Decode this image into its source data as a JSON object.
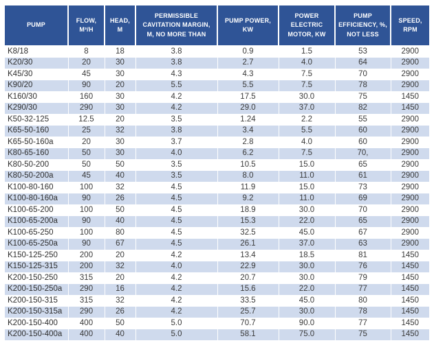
{
  "colors": {
    "header_bg": "#2F5496",
    "header_text": "#FFFFFF",
    "row_alt_bg": "#CFDAED",
    "body_text": "#3A3A3A"
  },
  "table": {
    "columns": [
      "PUMP",
      "FLOW, M³/H",
      "HEAD, M",
      "PERMISSIBLE CAVITATION MARGIN, M, NO MORE THAN",
      "PUMP POWER, KW",
      "POWER ELECTRIC MOTOR, KW",
      "PUMP EFFICIENCY, %, NOT LESS",
      "SPEED, RPM"
    ],
    "rows": [
      [
        "K8/18",
        "8",
        "18",
        "3.8",
        "0.9",
        "1.5",
        "53",
        "2900"
      ],
      [
        "K20/30",
        "20",
        "30",
        "3.8",
        "2.7",
        "4.0",
        "64",
        "2900"
      ],
      [
        "K45/30",
        "45",
        "30",
        "4.3",
        "4.3",
        "7.5",
        "70",
        "2900"
      ],
      [
        "K90/20",
        "90",
        "20",
        "5.5",
        "5.5",
        "7.5",
        "78",
        "2900"
      ],
      [
        "K160/30",
        "160",
        "30",
        "4.2",
        "17.5",
        "30.0",
        "75",
        "1450"
      ],
      [
        "K290/30",
        "290",
        "30",
        "4.2",
        "29.0",
        "37.0",
        "82",
        "1450"
      ],
      [
        "K50-32-125",
        "12.5",
        "20",
        "3.5",
        "1.24",
        "2.2",
        "55",
        "2900"
      ],
      [
        "K65-50-160",
        "25",
        "32",
        "3.8",
        "3.4",
        "5.5",
        "60",
        "2900"
      ],
      [
        "K65-50-160a",
        "20",
        "30",
        "3.7",
        "2.8",
        "4.0",
        "60",
        "2900"
      ],
      [
        "K80-65-160",
        "50",
        "30",
        "4.0",
        "6.2",
        "7.5",
        "70,",
        "2900"
      ],
      [
        "K80-50-200",
        "50",
        "50",
        "3.5",
        "10.5",
        "15.0",
        "65",
        "2900"
      ],
      [
        "K80-50-200a",
        "45",
        "40",
        "3.5",
        "8.0",
        "11.0",
        "61",
        "2900"
      ],
      [
        "K100-80-160",
        "100",
        "32",
        "4.5",
        "11.9",
        "15.0",
        "73",
        "2900"
      ],
      [
        "K100-80-160a",
        "90",
        "26",
        "4.5",
        "9.2",
        "11.0",
        "69",
        "2900"
      ],
      [
        "K100-65-200",
        "100",
        "50",
        "4.5",
        "18.9",
        "30.0",
        "70",
        "2900"
      ],
      [
        "K100-65-200a",
        "90",
        "40",
        "4.5",
        "15.3",
        "22.0",
        "65",
        "2900"
      ],
      [
        "K100-65-250",
        "100",
        "80",
        "4.5",
        "32.5",
        "45.0",
        "67",
        "2900"
      ],
      [
        "K100-65-250a",
        "90",
        "67",
        "4.5",
        "26.1",
        "37.0",
        "63",
        "2900"
      ],
      [
        "K150-125-250",
        "200",
        "20",
        "4.2",
        "13.4",
        "18.5",
        "81",
        "1450"
      ],
      [
        "K150-125-315",
        "200",
        "32",
        "4.0",
        "22.9",
        "30.0",
        "76",
        "1450"
      ],
      [
        "K200-150-250",
        "315",
        "20",
        "4.2",
        "20.7",
        "30.0",
        "79",
        "1450"
      ],
      [
        "K200-150-250a",
        "290",
        "16",
        "4.2",
        "15.6",
        "22.0",
        "77",
        "1450"
      ],
      [
        "K200-150-315",
        "315",
        "32",
        "4.2",
        "33.5",
        "45.0",
        "80",
        "1450"
      ],
      [
        "K200-150-315a",
        "290",
        "26",
        "4.2",
        "25.7",
        "30.0",
        "78",
        "1450"
      ],
      [
        "K200-150-400",
        "400",
        "50",
        "5.0",
        "70.7",
        "90.0",
        "77",
        "1450"
      ],
      [
        "K200-150-400a",
        "400",
        "40",
        "5.0",
        "58.1",
        "75.0",
        "75",
        "1450"
      ]
    ]
  }
}
